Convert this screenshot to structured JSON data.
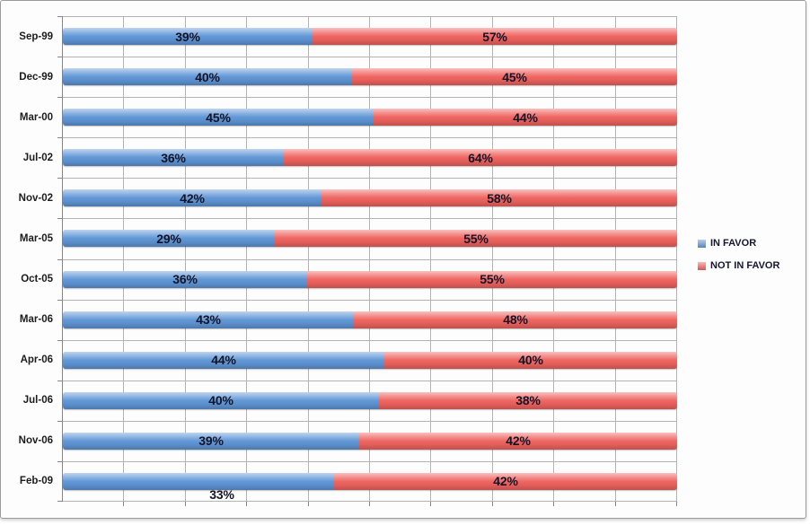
{
  "window": {
    "background": "#fdfdfd",
    "border_color": "#9a9a9a"
  },
  "chart_data": {
    "type": "bar",
    "subtype": "horizontal-100%-stacked",
    "title": "",
    "xlabel": "",
    "ylabel": "",
    "categories": [
      "Sep-99",
      "Dec-99",
      "Mar-00",
      "Jul-02",
      "Nov-02",
      "Mar-05",
      "Oct-05",
      "Mar-06",
      "Apr-06",
      "Jul-06",
      "Nov-06",
      "Feb-09"
    ],
    "series": [
      {
        "name": "IN FAVOR",
        "color": "#5f96d6",
        "values": [
          39,
          40,
          45,
          36,
          42,
          29,
          36,
          43,
          44,
          40,
          39,
          33
        ],
        "value_labels": [
          "39%",
          "40%",
          "45%",
          "36%",
          "42%",
          "29%",
          "36%",
          "43%",
          "44%",
          "40%",
          "39%",
          "33%"
        ]
      },
      {
        "name": "NOT IN FAVOR",
        "color": "#ef635f",
        "values": [
          57,
          45,
          44,
          64,
          58,
          55,
          55,
          48,
          40,
          38,
          42,
          42
        ],
        "value_labels": [
          "57%",
          "45%",
          "44%",
          "64%",
          "58%",
          "55%",
          "55%",
          "48%",
          "40%",
          "38%",
          "42%",
          "42%"
        ]
      }
    ],
    "axis": {
      "x_min_pct": 0,
      "x_max_pct": 100,
      "x_gridline_step_pct": 10,
      "gridlines": "vertical every 10% and horizontal at each category boundary",
      "gridline_color": "#b3b3b3",
      "axis_color": "#868686"
    },
    "legend": {
      "position": "right",
      "entries": [
        {
          "label": "IN FAVOR",
          "color": "#5f96d6"
        },
        {
          "label": "NOT IN FAVOR",
          "color": "#ef635f"
        }
      ]
    },
    "label_color": "#131327",
    "label_adjustments": [
      {
        "category": "Feb-09",
        "series": "IN FAVOR",
        "dx": 26,
        "dy": 15,
        "note": "33% label drawn below the bar"
      }
    ]
  }
}
